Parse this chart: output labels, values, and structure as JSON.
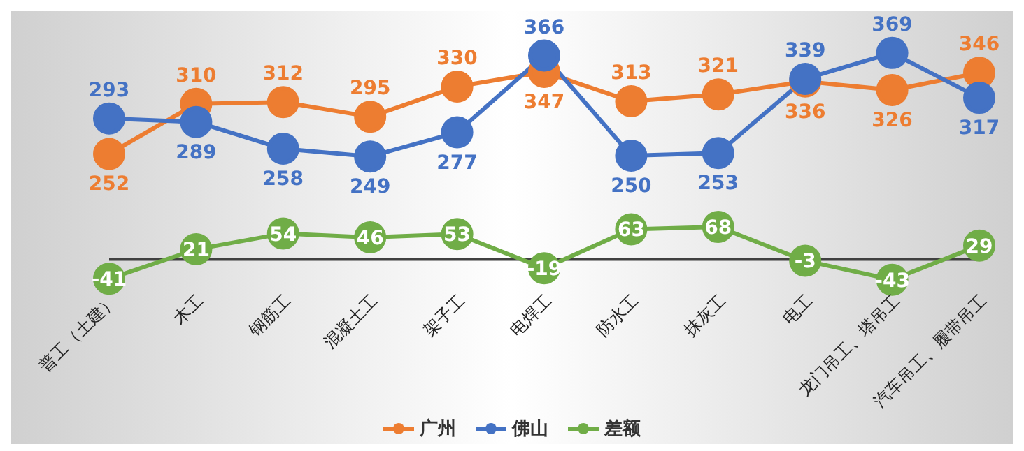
{
  "chart_data": [
    {
      "type": "line",
      "categories": [
        null,
        null,
        null,
        null,
        null,
        null,
        null,
        null,
        null,
        null,
        null
      ],
      "series": [
        {
          "name": "广州",
          "color": "#ed7d31",
          "values": [
            252,
            310,
            312,
            295,
            330,
            347,
            313,
            321,
            336,
            326,
            346
          ]
        },
        {
          "name": "佛山",
          "color": "#4472c4",
          "values": [
            293,
            289,
            258,
            249,
            277,
            366,
            250,
            253,
            339,
            369,
            317
          ]
        }
      ],
      "data_labels": true,
      "marker": "circle",
      "legend": "bottom",
      "tick_labels": false
    },
    {
      "type": "line",
      "categories": [
        "普工（土建）",
        "木工",
        "钢筋工",
        "混凝土工",
        "架子工",
        "电焊工",
        "防水工",
        "抹灰工",
        "电工",
        "龙门吊工、塔吊工",
        "汽车吊工、履带吊工"
      ],
      "series": [
        {
          "name": "差额",
          "color": "#70ad47",
          "values": [
            -41,
            21,
            54,
            46,
            53,
            -19,
            63,
            68,
            -3,
            -43,
            29
          ]
        }
      ],
      "data_labels": true,
      "marker": "circle",
      "legend": "bottom",
      "tick_labels": "x"
    }
  ]
}
